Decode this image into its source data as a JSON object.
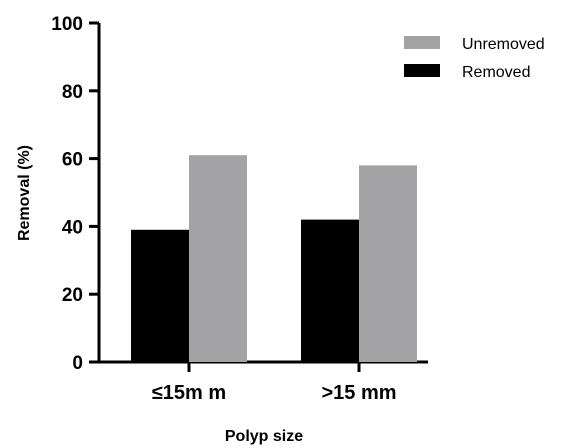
{
  "chart_data": {
    "type": "bar",
    "categories": [
      "≤15m m",
      ">15 mm"
    ],
    "series": [
      {
        "name": "Removed",
        "values": [
          39,
          42
        ],
        "color": "#000000"
      },
      {
        "name": "Unremoved",
        "values": [
          61,
          58
        ],
        "color": "#a3a3a6"
      }
    ],
    "legend_order": [
      "Unremoved",
      "Removed"
    ],
    "xlabel": "Polyp size",
    "ylabel": "Removal (%)",
    "ylim": [
      0,
      100
    ],
    "yticks": [
      0,
      20,
      40,
      60,
      80,
      100
    ],
    "grid": false,
    "legend_position": "top-right"
  }
}
